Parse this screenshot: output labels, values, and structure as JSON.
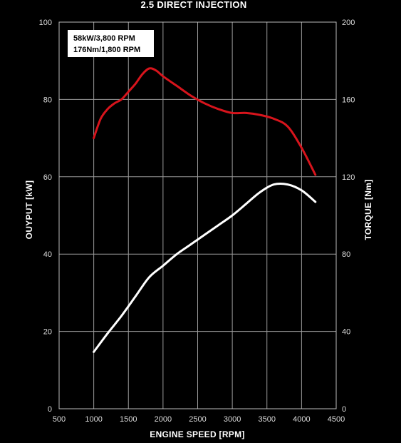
{
  "chart_data": {
    "type": "line",
    "title": "2.5 DIRECT INJECTION",
    "xlabel": "ENGINE SPEED [RPM]",
    "ylabel_left": "OUYPUT [kW]",
    "ylabel_right": "TORQUE [Nm]",
    "xlim": [
      500,
      4500
    ],
    "ylim_left": [
      0,
      100
    ],
    "ylim_right": [
      0,
      200
    ],
    "x_ticks": [
      500,
      1000,
      1500,
      2000,
      2500,
      3000,
      3500,
      4000,
      4500
    ],
    "y_left_ticks": [
      0,
      20,
      40,
      60,
      80,
      100
    ],
    "y_right_ticks": [
      0,
      40,
      80,
      120,
      160,
      200
    ],
    "grid": true,
    "annotation_lines": [
      "58kW/3,800 RPM",
      "176Nm/1,800 RPM"
    ],
    "series": [
      {
        "axis": "right",
        "color": "#d7141c",
        "x": [
          1000,
          1100,
          1200,
          1300,
          1400,
          1500,
          1600,
          1700,
          1800,
          1900,
          2000,
          2200,
          2400,
          2600,
          2800,
          3000,
          3200,
          3400,
          3600,
          3800,
          4000,
          4200
        ],
        "values": [
          140,
          150,
          155,
          158,
          160,
          164,
          168,
          173,
          176,
          175,
          172,
          167,
          162,
          158,
          155,
          153,
          153,
          152,
          150,
          146,
          135,
          121
        ]
      },
      {
        "axis": "left",
        "color": "#ffffff",
        "x": [
          1000,
          1200,
          1400,
          1600,
          1800,
          2000,
          2200,
          2400,
          2600,
          2800,
          3000,
          3200,
          3400,
          3600,
          3800,
          4000,
          4200
        ],
        "values": [
          14.7,
          19.5,
          24.0,
          29.0,
          34.0,
          37.0,
          40.0,
          42.5,
          45.0,
          47.5,
          50.0,
          53.0,
          56.0,
          58.0,
          58.0,
          56.5,
          53.5
        ]
      }
    ]
  }
}
